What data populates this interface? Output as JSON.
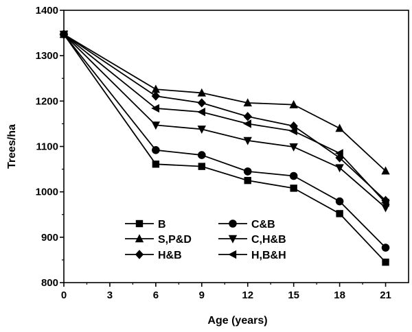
{
  "chart_data": {
    "type": "line",
    "title": "",
    "xlabel": "Age (years)",
    "ylabel": "Trees/ha",
    "xlim": [
      0,
      22.5
    ],
    "ylim": [
      800,
      1400
    ],
    "xticks": [
      0,
      3,
      6,
      9,
      12,
      15,
      18,
      21
    ],
    "yticks": [
      800,
      900,
      1000,
      1100,
      1200,
      1300,
      1400
    ],
    "x": [
      0,
      6,
      9,
      12,
      15,
      18,
      21
    ],
    "legend_position": "bottom-left",
    "series": [
      {
        "name": "B",
        "marker": "square",
        "values": [
          1347,
          1061,
          1056,
          1025,
          1008,
          952,
          845
        ]
      },
      {
        "name": "C&B",
        "marker": "circle",
        "values": [
          1347,
          1092,
          1081,
          1045,
          1035,
          979,
          877
        ]
      },
      {
        "name": "S,P&D",
        "marker": "triangle-up",
        "values": [
          1347,
          1226,
          1218,
          1196,
          1192,
          1140,
          1046
        ]
      },
      {
        "name": "C,H&B",
        "marker": "triangle-down",
        "values": [
          1347,
          1147,
          1138,
          1113,
          1099,
          1053,
          965
        ]
      },
      {
        "name": "H&B",
        "marker": "diamond",
        "values": [
          1347,
          1211,
          1196,
          1166,
          1145,
          1075,
          981
        ]
      },
      {
        "name": "H,B&H",
        "marker": "triangle-left",
        "values": [
          1347,
          1184,
          1176,
          1150,
          1134,
          1085,
          976
        ]
      }
    ]
  }
}
